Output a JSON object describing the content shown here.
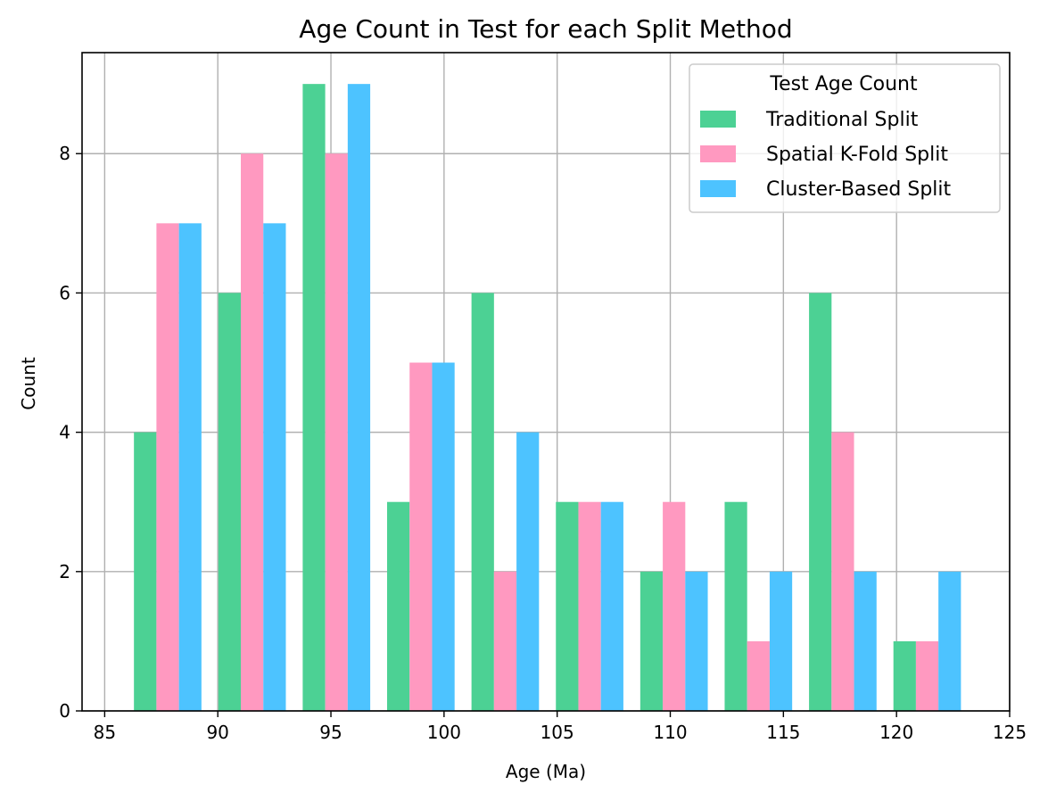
{
  "chart_data": {
    "type": "bar",
    "title": "Age Count in Test for each Split Method",
    "xlabel": "Age (Ma)",
    "ylabel": "Count",
    "xlim": [
      84,
      125
    ],
    "ylim": [
      0,
      9.45
    ],
    "xticks": [
      85,
      90,
      95,
      100,
      105,
      110,
      115,
      120,
      125
    ],
    "yticks": [
      0,
      2,
      4,
      6,
      8
    ],
    "grid": true,
    "legend": {
      "title": "Test Age Count",
      "placement": "top-right"
    },
    "bin_edges": [
      85.92,
      89.65,
      93.38,
      97.11,
      100.84,
      104.57,
      108.3,
      112.03,
      115.76,
      119.49,
      123.22
    ],
    "series": [
      {
        "name": "Traditional Split",
        "color": "#4cd194",
        "values": [
          4,
          6,
          9,
          3,
          6,
          3,
          2,
          3,
          6,
          1
        ]
      },
      {
        "name": "Spatial K-Fold Split",
        "color": "#ff99c0",
        "values": [
          7,
          8,
          8,
          5,
          2,
          3,
          3,
          1,
          4,
          1
        ]
      },
      {
        "name": "Cluster-Based Split",
        "color": "#4dc3ff",
        "values": [
          7,
          7,
          9,
          5,
          4,
          3,
          2,
          2,
          2,
          2
        ]
      }
    ]
  }
}
